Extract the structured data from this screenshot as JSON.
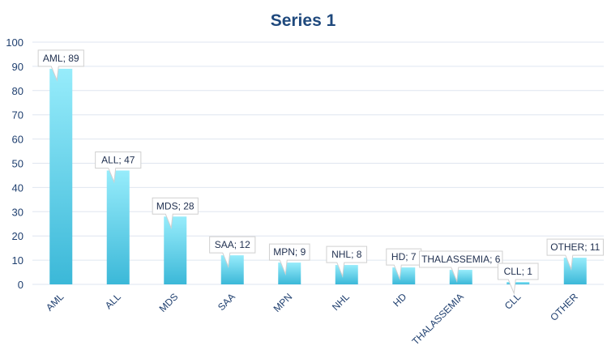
{
  "chart_data": {
    "type": "bar",
    "title": "Series 1",
    "xlabel": "",
    "ylabel": "",
    "ylim": [
      0,
      100
    ],
    "yticks": [
      0,
      10,
      20,
      30,
      40,
      50,
      60,
      70,
      80,
      90,
      100
    ],
    "grid": true,
    "legend": "none",
    "categories": [
      "AML",
      "ALL",
      "MDS",
      "SAA",
      "MPN",
      "NHL",
      "HD",
      "THALASSEMIA",
      "CLL",
      "OTHER"
    ],
    "values": [
      89,
      47,
      28,
      12,
      9,
      8,
      7,
      6,
      1,
      11
    ],
    "data_labels": [
      "AML; 89",
      "ALL; 47",
      "MDS; 28",
      "SAA; 12",
      "MPN; 9",
      "NHL; 8",
      "HD; 7",
      "THALASSEMIA; 6",
      "CLL; 1",
      "OTHER; 11"
    ],
    "colors": {
      "bar_top": "#97ecfb",
      "bar_bottom": "#3bb8d8",
      "grid": "#dfe6f0",
      "text": "#1f3f6f",
      "title": "#1f497d"
    }
  }
}
